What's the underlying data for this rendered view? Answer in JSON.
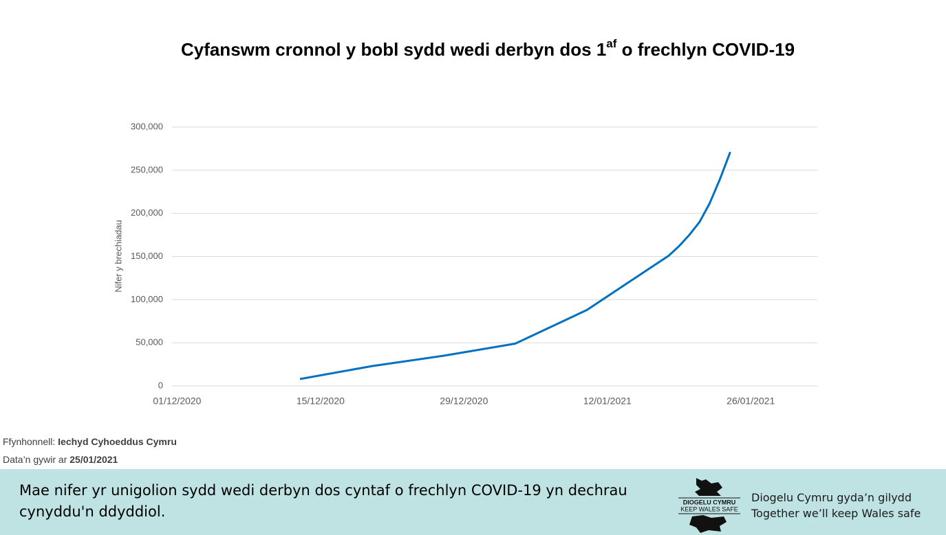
{
  "chart_data": {
    "type": "line",
    "title": [
      "Cyfanswm cronnol y bobl sydd wedi derbyn dos 1",
      "af",
      " o frechlyn COVID-19"
    ],
    "y_label": "Nifer y brechiadau",
    "x": [
      "13/12/2020",
      "20/12/2020",
      "27/12/2020",
      "03/01/2021",
      "10/01/2021",
      "18/01/2021",
      "19/01/2021",
      "20/01/2021",
      "21/01/2021",
      "22/01/2021",
      "23/01/2021",
      "24/01/2021"
    ],
    "values": [
      8000,
      23000,
      35000,
      49000,
      88000,
      151000,
      162000,
      175000,
      190000,
      212000,
      240000,
      271000
    ],
    "color": "#0070c0",
    "xlim": [
      "01/12/2020",
      "01/02/2021"
    ],
    "xticks": [
      "01/12/2020",
      "15/12/2020",
      "29/12/2020",
      "12/01/2021",
      "26/01/2021"
    ],
    "ylim": [
      0,
      300000
    ],
    "yticks": [
      0,
      {
        "value": 50000,
        "label": "50,000"
      },
      {
        "value": 100000,
        "label": "100,000"
      },
      {
        "value": 150000,
        "label": "150,000"
      },
      {
        "value": 200000,
        "label": "200,000"
      },
      {
        "value": 250000,
        "label": "250,000"
      },
      {
        "value": 300000,
        "label": "300,000"
      }
    ],
    "grid": true
  },
  "source": {
    "label": "Ffynhonnell: ",
    "value": "Iechyd Cyhoeddus Cymru"
  },
  "date_note": {
    "label": "Data’n gywir ar ",
    "value": "25/01/2021"
  },
  "banner": {
    "message": "Mae nifer yr unigolion sydd wedi derbyn dos cyntaf o frechlyn COVID-19 yn dechrau cynyddu'n ddyddiol.",
    "logo_lines": [
      "DIOGELU CYMRU",
      "KEEP WALES SAFE"
    ],
    "tagline": [
      "Diogelu Cymru gyda’n gilydd",
      "Together we’ll keep Wales safe"
    ]
  }
}
